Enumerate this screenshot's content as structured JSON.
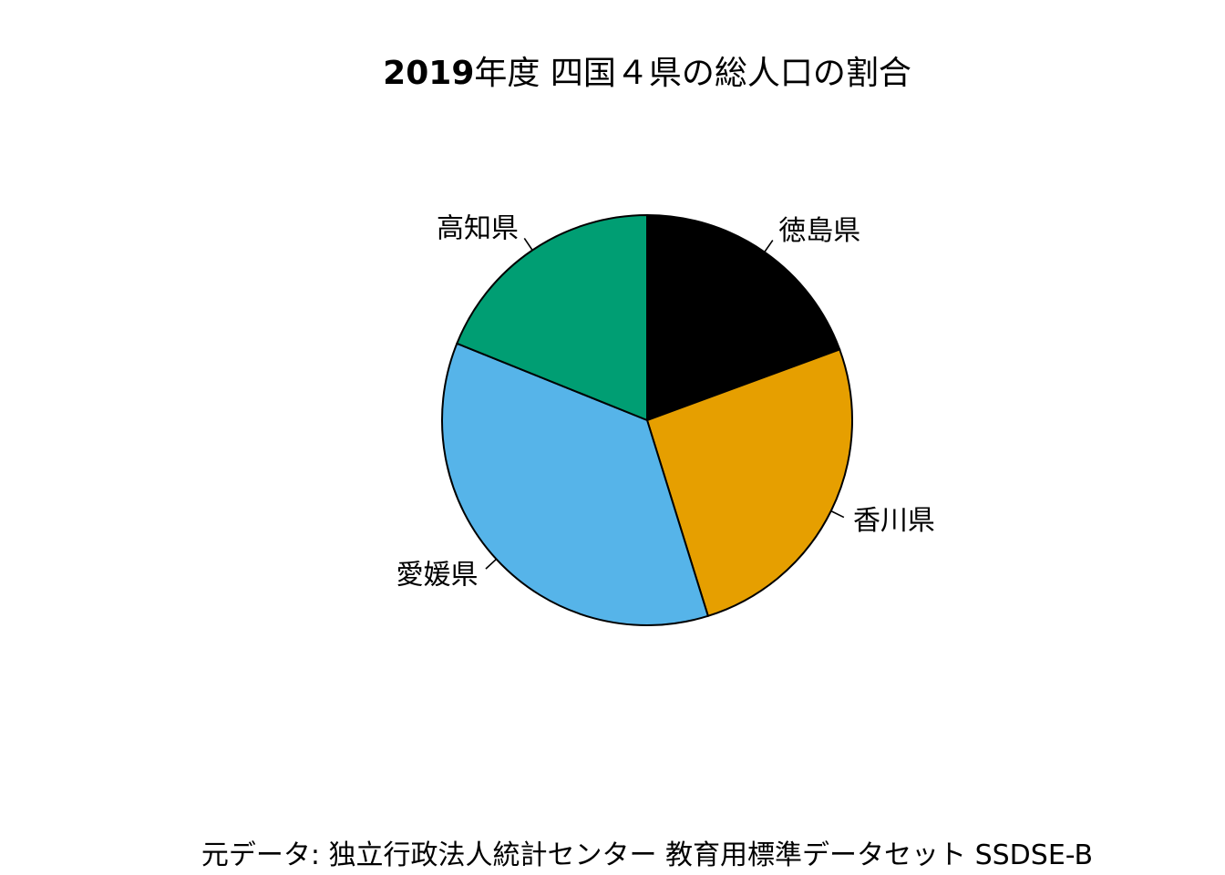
{
  "chart_data": {
    "type": "pie",
    "title_bold": "2019",
    "title_rest": "年度 四国４県の総人口の割合",
    "slices": [
      {
        "label": "徳島県",
        "value": 19.4,
        "color": "#000000"
      },
      {
        "label": "香川県",
        "value": 25.8,
        "color": "#E69F00"
      },
      {
        "label": "愛媛県",
        "value": 35.9,
        "color": "#56B4E9"
      },
      {
        "label": "高知県",
        "value": 18.9,
        "color": "#009E73"
      }
    ],
    "start_angle": "12 o'clock",
    "direction": "clockwise",
    "legend": "none",
    "caption": "元データ: 独立行政法人統計センター 教育用標準データセット SSDSE-B"
  }
}
